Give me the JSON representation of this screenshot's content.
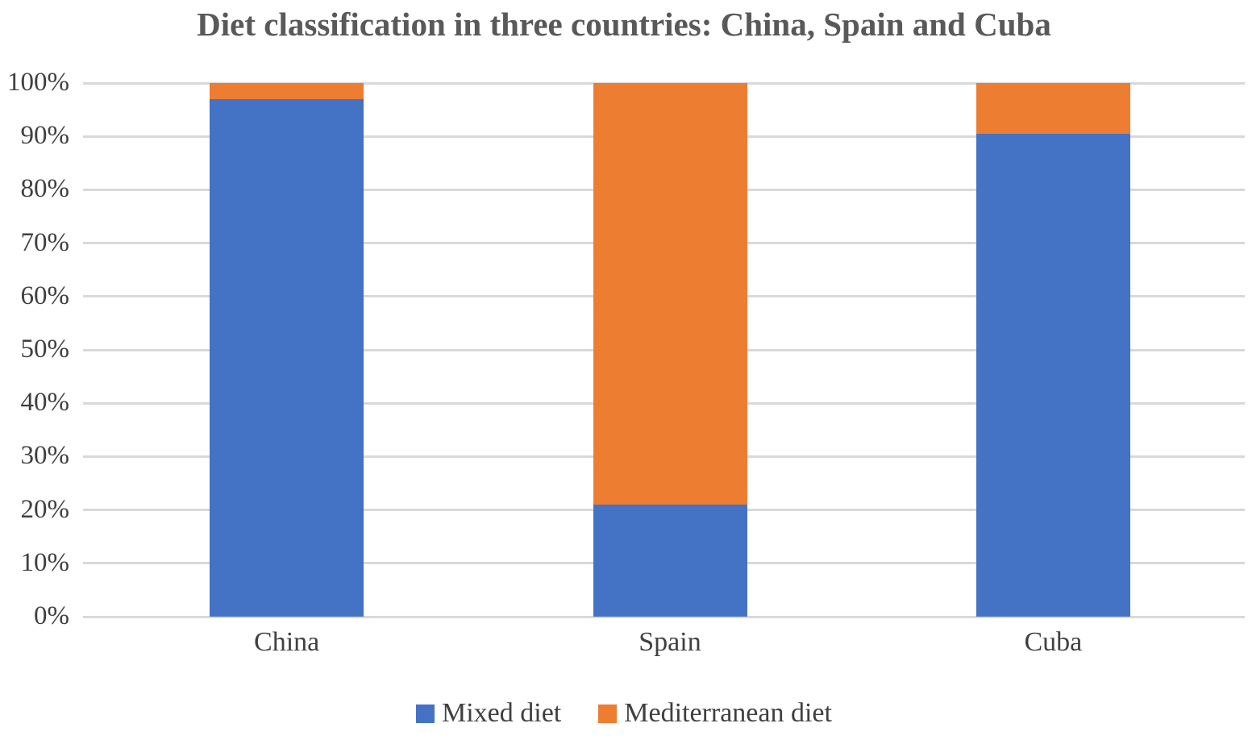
{
  "chart_data": {
    "type": "bar",
    "variant": "stacked-100-percent",
    "title": "Diet classification in three countries: China, Spain and Cuba",
    "categories": [
      "China",
      "Spain",
      "Cuba"
    ],
    "series": [
      {
        "name": "Mixed diet",
        "color": "#4472C4",
        "values": [
          97,
          21,
          90.5
        ]
      },
      {
        "name": "Mediterranean diet",
        "color": "#ED7D31",
        "values": [
          3,
          79,
          9.5
        ]
      }
    ],
    "xlabel": "",
    "ylabel": "",
    "ylim": [
      0,
      100
    ],
    "y_tick_labels": [
      "0%",
      "10%",
      "20%",
      "30%",
      "40%",
      "50%",
      "60%",
      "70%",
      "80%",
      "90%",
      "100%"
    ],
    "grid": true,
    "gridline_color": "#d9d9d9",
    "legend_position": "bottom",
    "title_color": "#595959",
    "label_color": "#404040"
  }
}
